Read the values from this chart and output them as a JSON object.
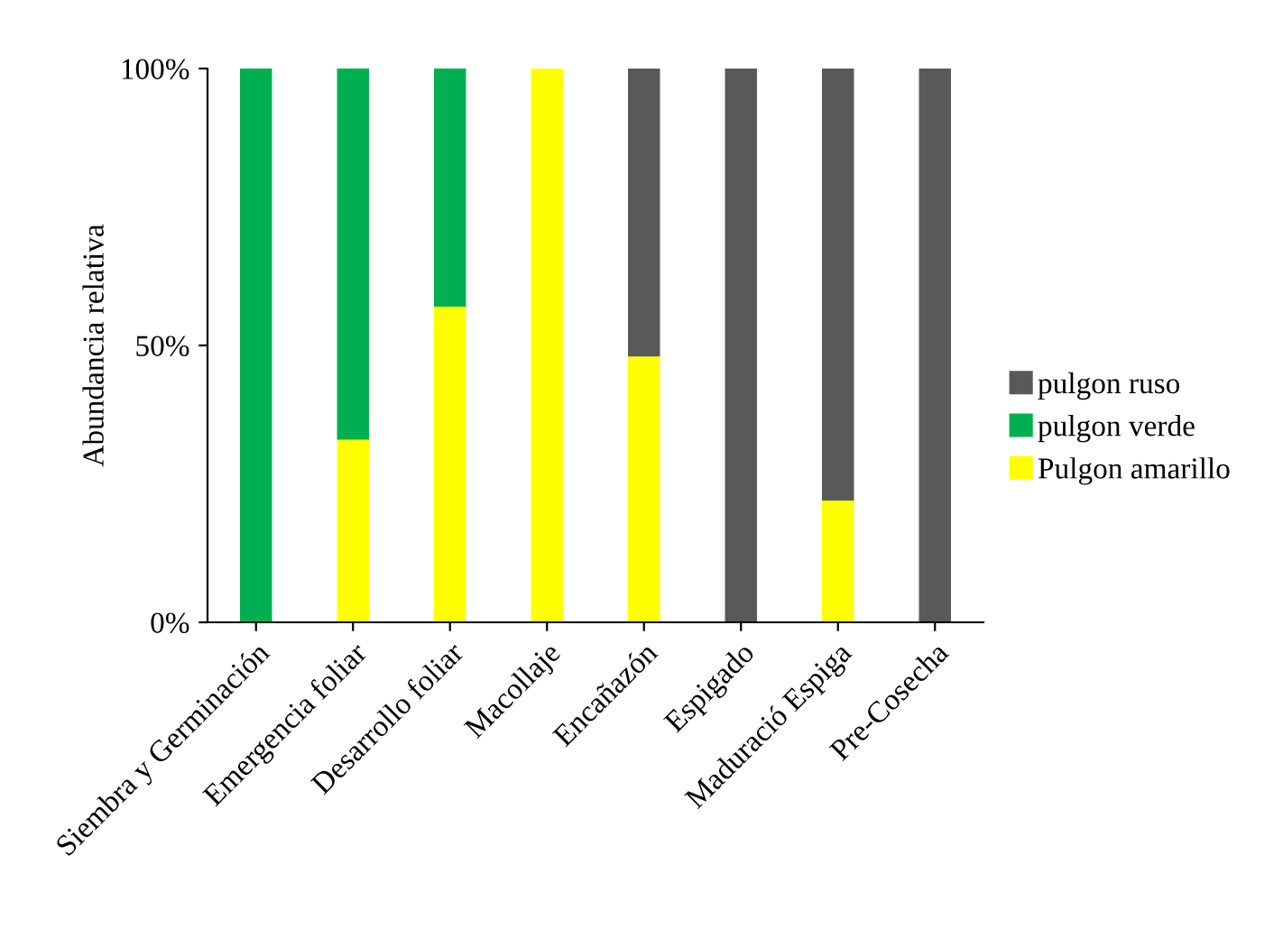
{
  "chart_data": {
    "type": "bar",
    "stacked": true,
    "ylabel": "Abundancia relativa",
    "categories": [
      "Siembra y Germinación",
      "Emergencia foliar",
      "Desarrollo foliar",
      "Macollaje",
      "Encañazón",
      "Espigado",
      "Maduració Espiga",
      "Pre-Cosecha"
    ],
    "series": [
      {
        "name": "Pulgon amarillo",
        "color": "#ffff00",
        "values": [
          0,
          33,
          57,
          100,
          48,
          0,
          22,
          0
        ]
      },
      {
        "name": "pulgon verde",
        "color": "#00b050",
        "values": [
          100,
          67,
          43,
          0,
          0,
          0,
          0,
          0
        ]
      },
      {
        "name": "pulgon ruso",
        "color": "#595959",
        "values": [
          0,
          0,
          0,
          0,
          52,
          100,
          78,
          100
        ]
      }
    ],
    "ylim": [
      0,
      100
    ],
    "yticks": [
      {
        "value": 0,
        "label": "0%"
      },
      {
        "value": 50,
        "label": "50%"
      },
      {
        "value": 100,
        "label": "100%"
      }
    ],
    "grid": false,
    "legend": "right"
  }
}
